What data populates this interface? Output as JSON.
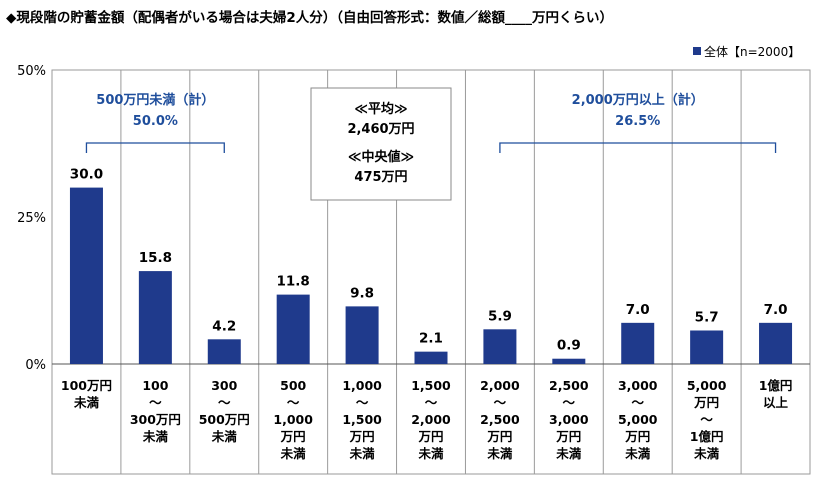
{
  "title": "◆現段階の貯蓄金額（配偶者がいる場合は夫婦2人分）（自由回答形式：数値／総額____万円くらい）",
  "legend": "全体【n=2000】",
  "colors": {
    "bar": "#1f3a8c",
    "annotation": "#1f4e9c",
    "grid": "#9a9a9a"
  },
  "chart_data": {
    "type": "bar",
    "ylim": [
      0,
      50
    ],
    "yticks": [
      "0%",
      "25%",
      "50%"
    ],
    "categories": [
      [
        "100万円",
        "未満"
      ],
      [
        "100",
        "～",
        "300万円",
        "未満"
      ],
      [
        "300",
        "～",
        "500万円",
        "未満"
      ],
      [
        "500",
        "～",
        "1,000",
        "万円",
        "未満"
      ],
      [
        "1,000",
        "～",
        "1,500",
        "万円",
        "未満"
      ],
      [
        "1,500",
        "～",
        "2,000",
        "万円",
        "未満"
      ],
      [
        "2,000",
        "～",
        "2,500",
        "万円",
        "未満"
      ],
      [
        "2,500",
        "～",
        "3,000",
        "万円",
        "未満"
      ],
      [
        "3,000",
        "～",
        "5,000",
        "万円",
        "未満"
      ],
      [
        "5,000",
        "万円",
        "～",
        "1億円",
        "未満"
      ],
      [
        "1億円",
        "以上"
      ]
    ],
    "series": [
      {
        "name": "全体【n=2000】",
        "values": [
          30.0,
          15.8,
          4.2,
          11.8,
          9.8,
          2.1,
          5.9,
          0.9,
          7.0,
          5.7,
          7.0
        ],
        "labels": [
          "30.0",
          "15.8",
          "4.2",
          "11.8",
          "9.8",
          "2.1",
          "5.9",
          "0.9",
          "7.0",
          "5.7",
          "7.0"
        ]
      }
    ],
    "annotations": [
      {
        "lines": [
          "500万円未満（計）",
          "50.0%"
        ],
        "from": 0,
        "to": 2
      },
      {
        "lines": [
          "2,000万円以上（計）",
          "26.5%"
        ],
        "from": 6,
        "to": 10
      }
    ],
    "summary_box": [
      "≪平均≫",
      "2,460万円",
      "≪中央値≫",
      "475万円"
    ]
  }
}
